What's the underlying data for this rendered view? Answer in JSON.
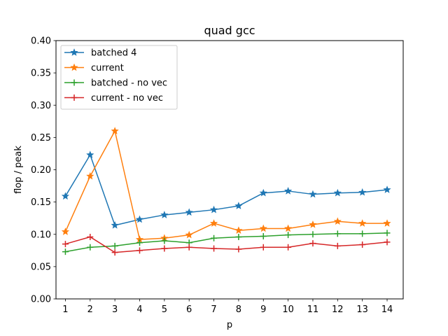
{
  "chart_data": {
    "type": "line",
    "title": "quad gcc",
    "xlabel": "p",
    "ylabel": "flop / peak",
    "x": [
      1,
      2,
      3,
      4,
      5,
      6,
      7,
      8,
      9,
      10,
      11,
      12,
      13,
      14
    ],
    "xticks": [
      "1",
      "2",
      "3",
      "4",
      "5",
      "6",
      "7",
      "8",
      "9",
      "10",
      "11",
      "12",
      "13",
      "14"
    ],
    "xlim": [
      0.62,
      14.65
    ],
    "ylim": [
      0.0,
      0.4
    ],
    "yticks": [
      "0.00",
      "0.05",
      "0.10",
      "0.15",
      "0.20",
      "0.25",
      "0.30",
      "0.35",
      "0.40"
    ],
    "grid": false,
    "legend_position": "top-left",
    "series": [
      {
        "name": "batched 4",
        "color": "#1f77b4",
        "marker": "star",
        "values": [
          0.159,
          0.223,
          0.114,
          0.123,
          0.13,
          0.134,
          0.138,
          0.144,
          0.164,
          0.167,
          0.162,
          0.164,
          0.165,
          0.169
        ]
      },
      {
        "name": "current",
        "color": "#ff7f0e",
        "marker": "star",
        "values": [
          0.104,
          0.19,
          0.26,
          0.092,
          0.094,
          0.099,
          0.117,
          0.106,
          0.109,
          0.109,
          0.115,
          0.12,
          0.117,
          0.117
        ]
      },
      {
        "name": "batched - no vec",
        "color": "#2ca02c",
        "marker": "plus",
        "values": [
          0.073,
          0.08,
          0.082,
          0.087,
          0.09,
          0.087,
          0.094,
          0.096,
          0.097,
          0.099,
          0.1,
          0.101,
          0.101,
          0.102
        ]
      },
      {
        "name": "current - no vec",
        "color": "#d62728",
        "marker": "plus",
        "values": [
          0.085,
          0.096,
          0.072,
          0.075,
          0.078,
          0.08,
          0.078,
          0.077,
          0.08,
          0.08,
          0.086,
          0.082,
          0.084,
          0.088
        ]
      }
    ]
  }
}
